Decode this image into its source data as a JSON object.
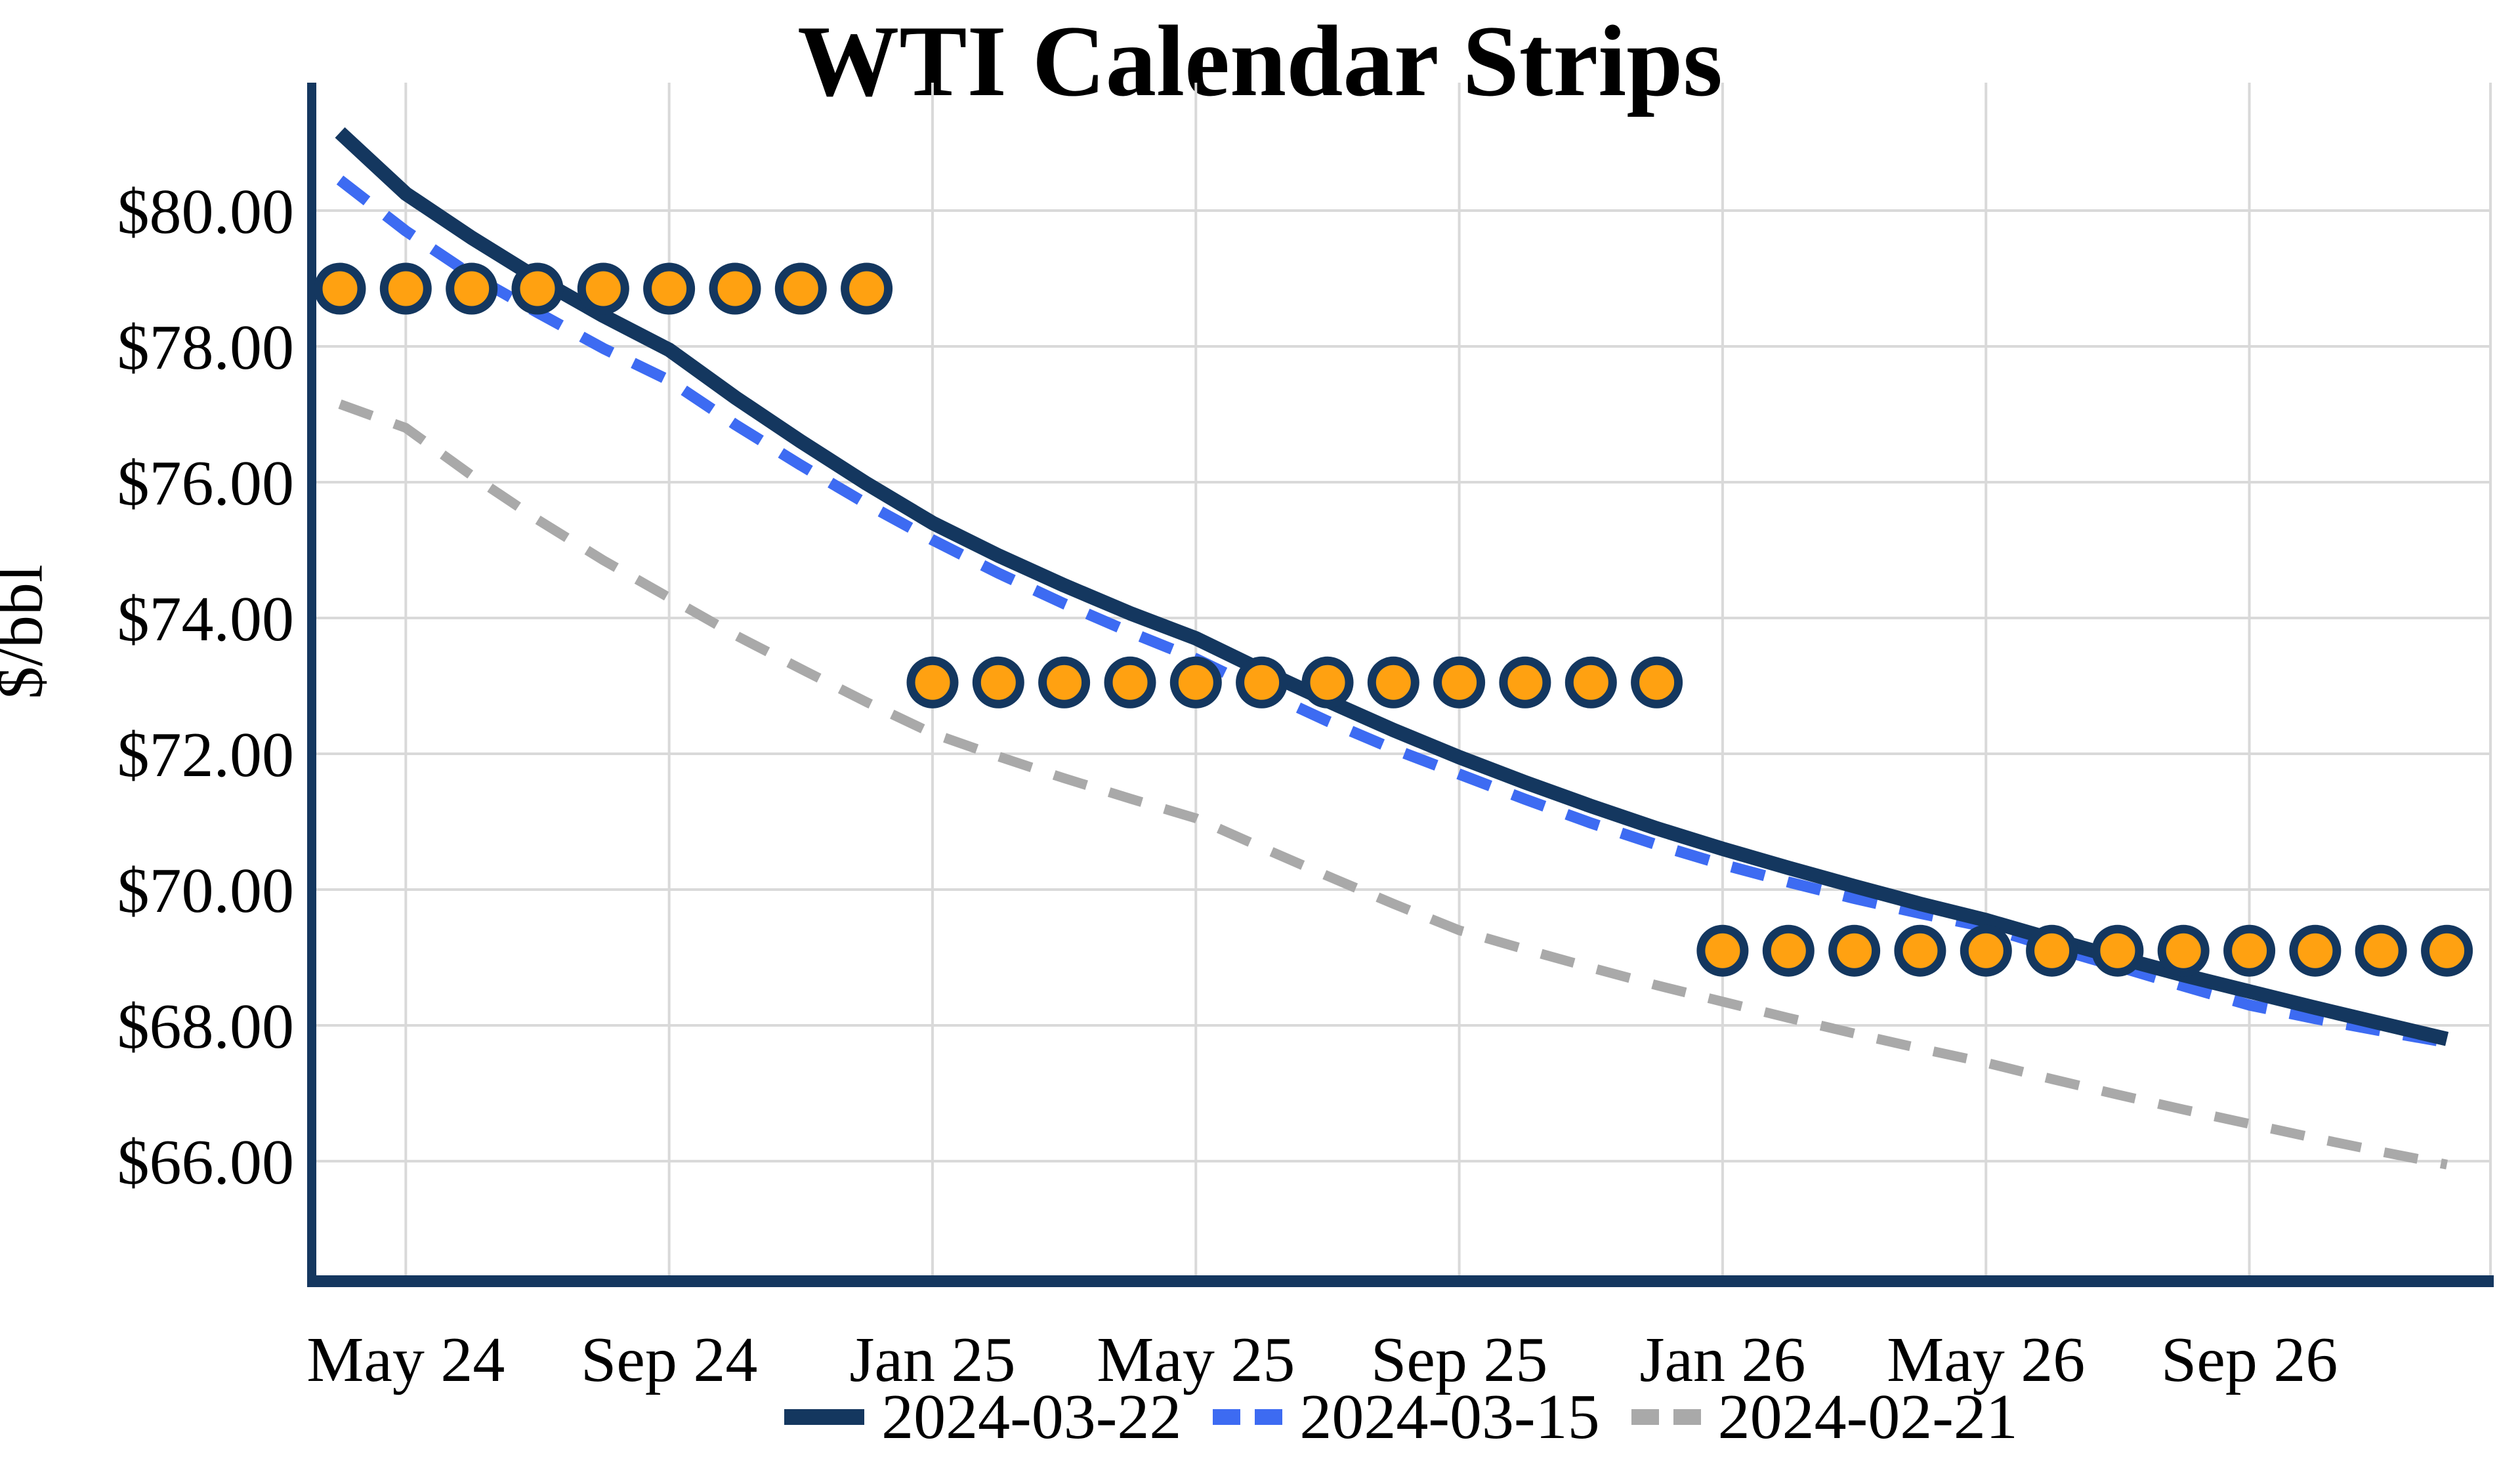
{
  "title": "WTI Calendar Strips",
  "y_axis": {
    "title": "$/bbl",
    "tick_labels": [
      "$66.00",
      "$68.00",
      "$70.00",
      "$72.00",
      "$74.00",
      "$76.00",
      "$78.00",
      "$80.00"
    ]
  },
  "x_axis": {
    "tick_labels": [
      "May 24",
      "Sep 24",
      "Jan 25",
      "May 25",
      "Sep 25",
      "Jan 26",
      "May 26",
      "Sep 26"
    ]
  },
  "legend": {
    "items": [
      {
        "label": "2024-03-22",
        "style": "solid",
        "color": "#14375F"
      },
      {
        "label": "2024-03-15",
        "style": "dashed",
        "color": "#3D6BF2"
      },
      {
        "label": "2024-02-21",
        "style": "dashed",
        "color": "#A9A9A9"
      }
    ]
  },
  "colors": {
    "navy": "#14375F",
    "blue": "#3D6BF2",
    "gray": "#A9A9A9",
    "orange": "#FFA111",
    "grid": "#D9D9D9",
    "background": "#FFFFFF"
  },
  "chart_data": {
    "type": "line",
    "title": "WTI Calendar Strips",
    "xlabel": "",
    "ylabel": "$/bbl",
    "ylim": [
      64.2,
      81.9
    ],
    "grid": true,
    "legend_position": "bottom-center",
    "x": [
      "2024-04",
      "2024-05",
      "2024-06",
      "2024-07",
      "2024-08",
      "2024-09",
      "2024-10",
      "2024-11",
      "2024-12",
      "2025-01",
      "2025-02",
      "2025-03",
      "2025-04",
      "2025-05",
      "2025-06",
      "2025-07",
      "2025-08",
      "2025-09",
      "2025-10",
      "2025-11",
      "2025-12",
      "2026-01",
      "2026-02",
      "2026-03",
      "2026-04",
      "2026-05",
      "2026-06",
      "2026-07",
      "2026-08",
      "2026-09",
      "2026-10",
      "2026-11",
      "2026-12"
    ],
    "x_ticks": [
      "2024-05",
      "2024-09",
      "2025-01",
      "2025-05",
      "2025-09",
      "2026-01",
      "2026-05",
      "2026-09"
    ],
    "x_tick_labels": [
      "May 24",
      "Sep 24",
      "Jan 25",
      "May 25",
      "Sep 25",
      "Jan 26",
      "May 26",
      "Sep 26"
    ],
    "y_ticks": [
      66,
      68,
      70,
      72,
      74,
      76,
      78,
      80
    ],
    "y_tick_labels": [
      "$66.00",
      "$68.00",
      "$70.00",
      "$72.00",
      "$74.00",
      "$76.00",
      "$78.00",
      "$80.00"
    ],
    "series": [
      {
        "name": "2024-03-22",
        "style": "solid",
        "color": "#14375F",
        "line_width": 22,
        "values": [
          81.15,
          80.25,
          79.6,
          79.0,
          78.45,
          77.95,
          77.25,
          76.6,
          75.98,
          75.4,
          74.92,
          74.48,
          74.07,
          73.7,
          73.23,
          72.78,
          72.35,
          71.95,
          71.58,
          71.23,
          70.9,
          70.6,
          70.32,
          70.05,
          69.79,
          69.55,
          69.27,
          69.0,
          68.74,
          68.5,
          68.26,
          68.03,
          67.8
        ]
      },
      {
        "name": "2024-03-15",
        "style": "dashed",
        "color": "#3D6BF2",
        "line_width": 17,
        "values": [
          80.45,
          79.7,
          79.05,
          78.5,
          77.97,
          77.5,
          76.85,
          76.25,
          75.68,
          75.15,
          74.66,
          74.21,
          73.79,
          73.4,
          72.93,
          72.48,
          72.07,
          71.7,
          71.33,
          70.98,
          70.66,
          70.37,
          70.11,
          69.87,
          69.65,
          69.45,
          69.15,
          68.87,
          68.58,
          68.3,
          68.1,
          67.92,
          67.75
        ]
      },
      {
        "name": "2024-02-21",
        "style": "dashed",
        "color": "#A9A9A9",
        "line_width": 15,
        "values": [
          77.15,
          76.8,
          76.1,
          75.45,
          74.85,
          74.3,
          73.75,
          73.25,
          72.76,
          72.3,
          71.96,
          71.64,
          71.34,
          71.05,
          70.62,
          70.2,
          69.79,
          69.4,
          69.12,
          68.85,
          68.59,
          68.35,
          68.11,
          67.88,
          67.66,
          67.45,
          67.21,
          66.98,
          66.76,
          66.55,
          66.34,
          66.14,
          65.95
        ]
      }
    ],
    "markers": {
      "name": "calendar-strip-levels",
      "shape": "circle",
      "color": "#FFA111",
      "outline": "#14375F",
      "values": [
        78.85,
        78.85,
        78.85,
        78.85,
        78.85,
        78.85,
        78.85,
        78.85,
        78.85,
        73.05,
        73.05,
        73.05,
        73.05,
        73.05,
        73.05,
        73.05,
        73.05,
        73.05,
        73.05,
        73.05,
        73.05,
        69.1,
        69.1,
        69.1,
        69.1,
        69.1,
        69.1,
        69.1,
        69.1,
        69.1,
        69.1,
        69.1,
        69.1
      ]
    }
  }
}
